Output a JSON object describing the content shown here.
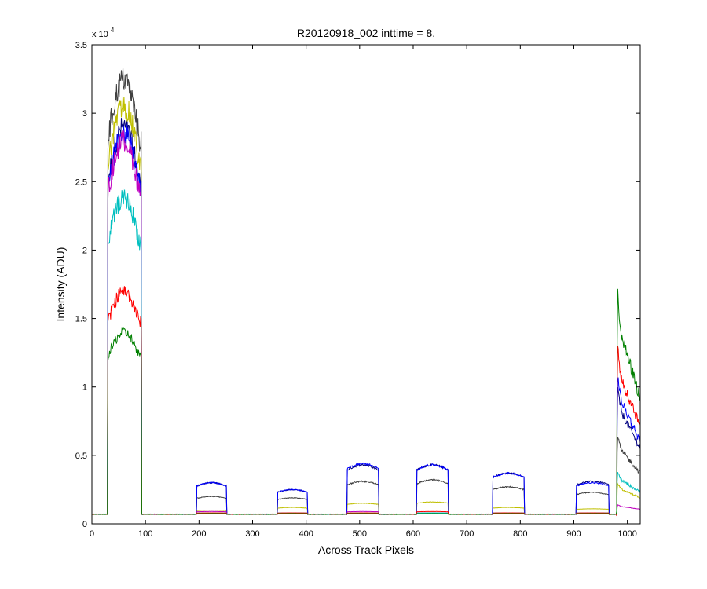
{
  "chart_data": {
    "type": "line",
    "title": "R20120918_002 inttime = 8,",
    "xlabel": "Across Track Pixels",
    "ylabel": "Intensity (ADU)",
    "y_multiplier": "x 10",
    "y_exponent": "4",
    "xlim": [
      0,
      1024
    ],
    "ylim": [
      0,
      35000
    ],
    "x_ticks": [
      0,
      100,
      200,
      300,
      400,
      500,
      600,
      700,
      800,
      900,
      1000
    ],
    "y_ticks": [
      0,
      5000,
      10000,
      15000,
      20000,
      25000,
      30000,
      35000
    ],
    "y_tick_labels": [
      "0",
      "0.5",
      "1",
      "1.5",
      "2",
      "2.5",
      "3",
      "3.5"
    ],
    "grid": false,
    "baseline": 700,
    "regions": [
      {
        "start": 30,
        "end": 92
      },
      {
        "start": 196,
        "end": 251
      },
      {
        "start": 347,
        "end": 402
      },
      {
        "start": 477,
        "end": 535
      },
      {
        "start": 607,
        "end": 665
      },
      {
        "start": 749,
        "end": 807
      },
      {
        "start": 905,
        "end": 965
      },
      {
        "start": 980,
        "end": 1024
      }
    ],
    "series": [
      {
        "color": "#000080",
        "peaks": [
          29000,
          3000,
          2500,
          4300,
          4300,
          3700,
          3100,
          10000
        ]
      },
      {
        "color": "#404040",
        "peaks": [
          32500,
          2000,
          1900,
          3100,
          3200,
          2700,
          2300,
          6500
        ]
      },
      {
        "color": "#bfbf00",
        "peaks": [
          30500,
          1000,
          1200,
          1500,
          1600,
          1200,
          1100,
          3000
        ]
      },
      {
        "color": "#0000ff",
        "peaks": [
          28500,
          3000,
          2500,
          4400,
          4300,
          3700,
          3000,
          11000
        ]
      },
      {
        "color": "#bf00bf",
        "peaks": [
          28000,
          900,
          800,
          900,
          800,
          800,
          800,
          1400
        ]
      },
      {
        "color": "#00bfbf",
        "peaks": [
          23800,
          800,
          800,
          800,
          800,
          800,
          800,
          3800
        ]
      },
      {
        "color": "#ff0000",
        "peaks": [
          17000,
          800,
          800,
          800,
          900,
          800,
          800,
          13000
        ]
      },
      {
        "color": "#008000",
        "peaks": [
          14000,
          750,
          750,
          750,
          750,
          750,
          750,
          17000
        ]
      }
    ]
  }
}
